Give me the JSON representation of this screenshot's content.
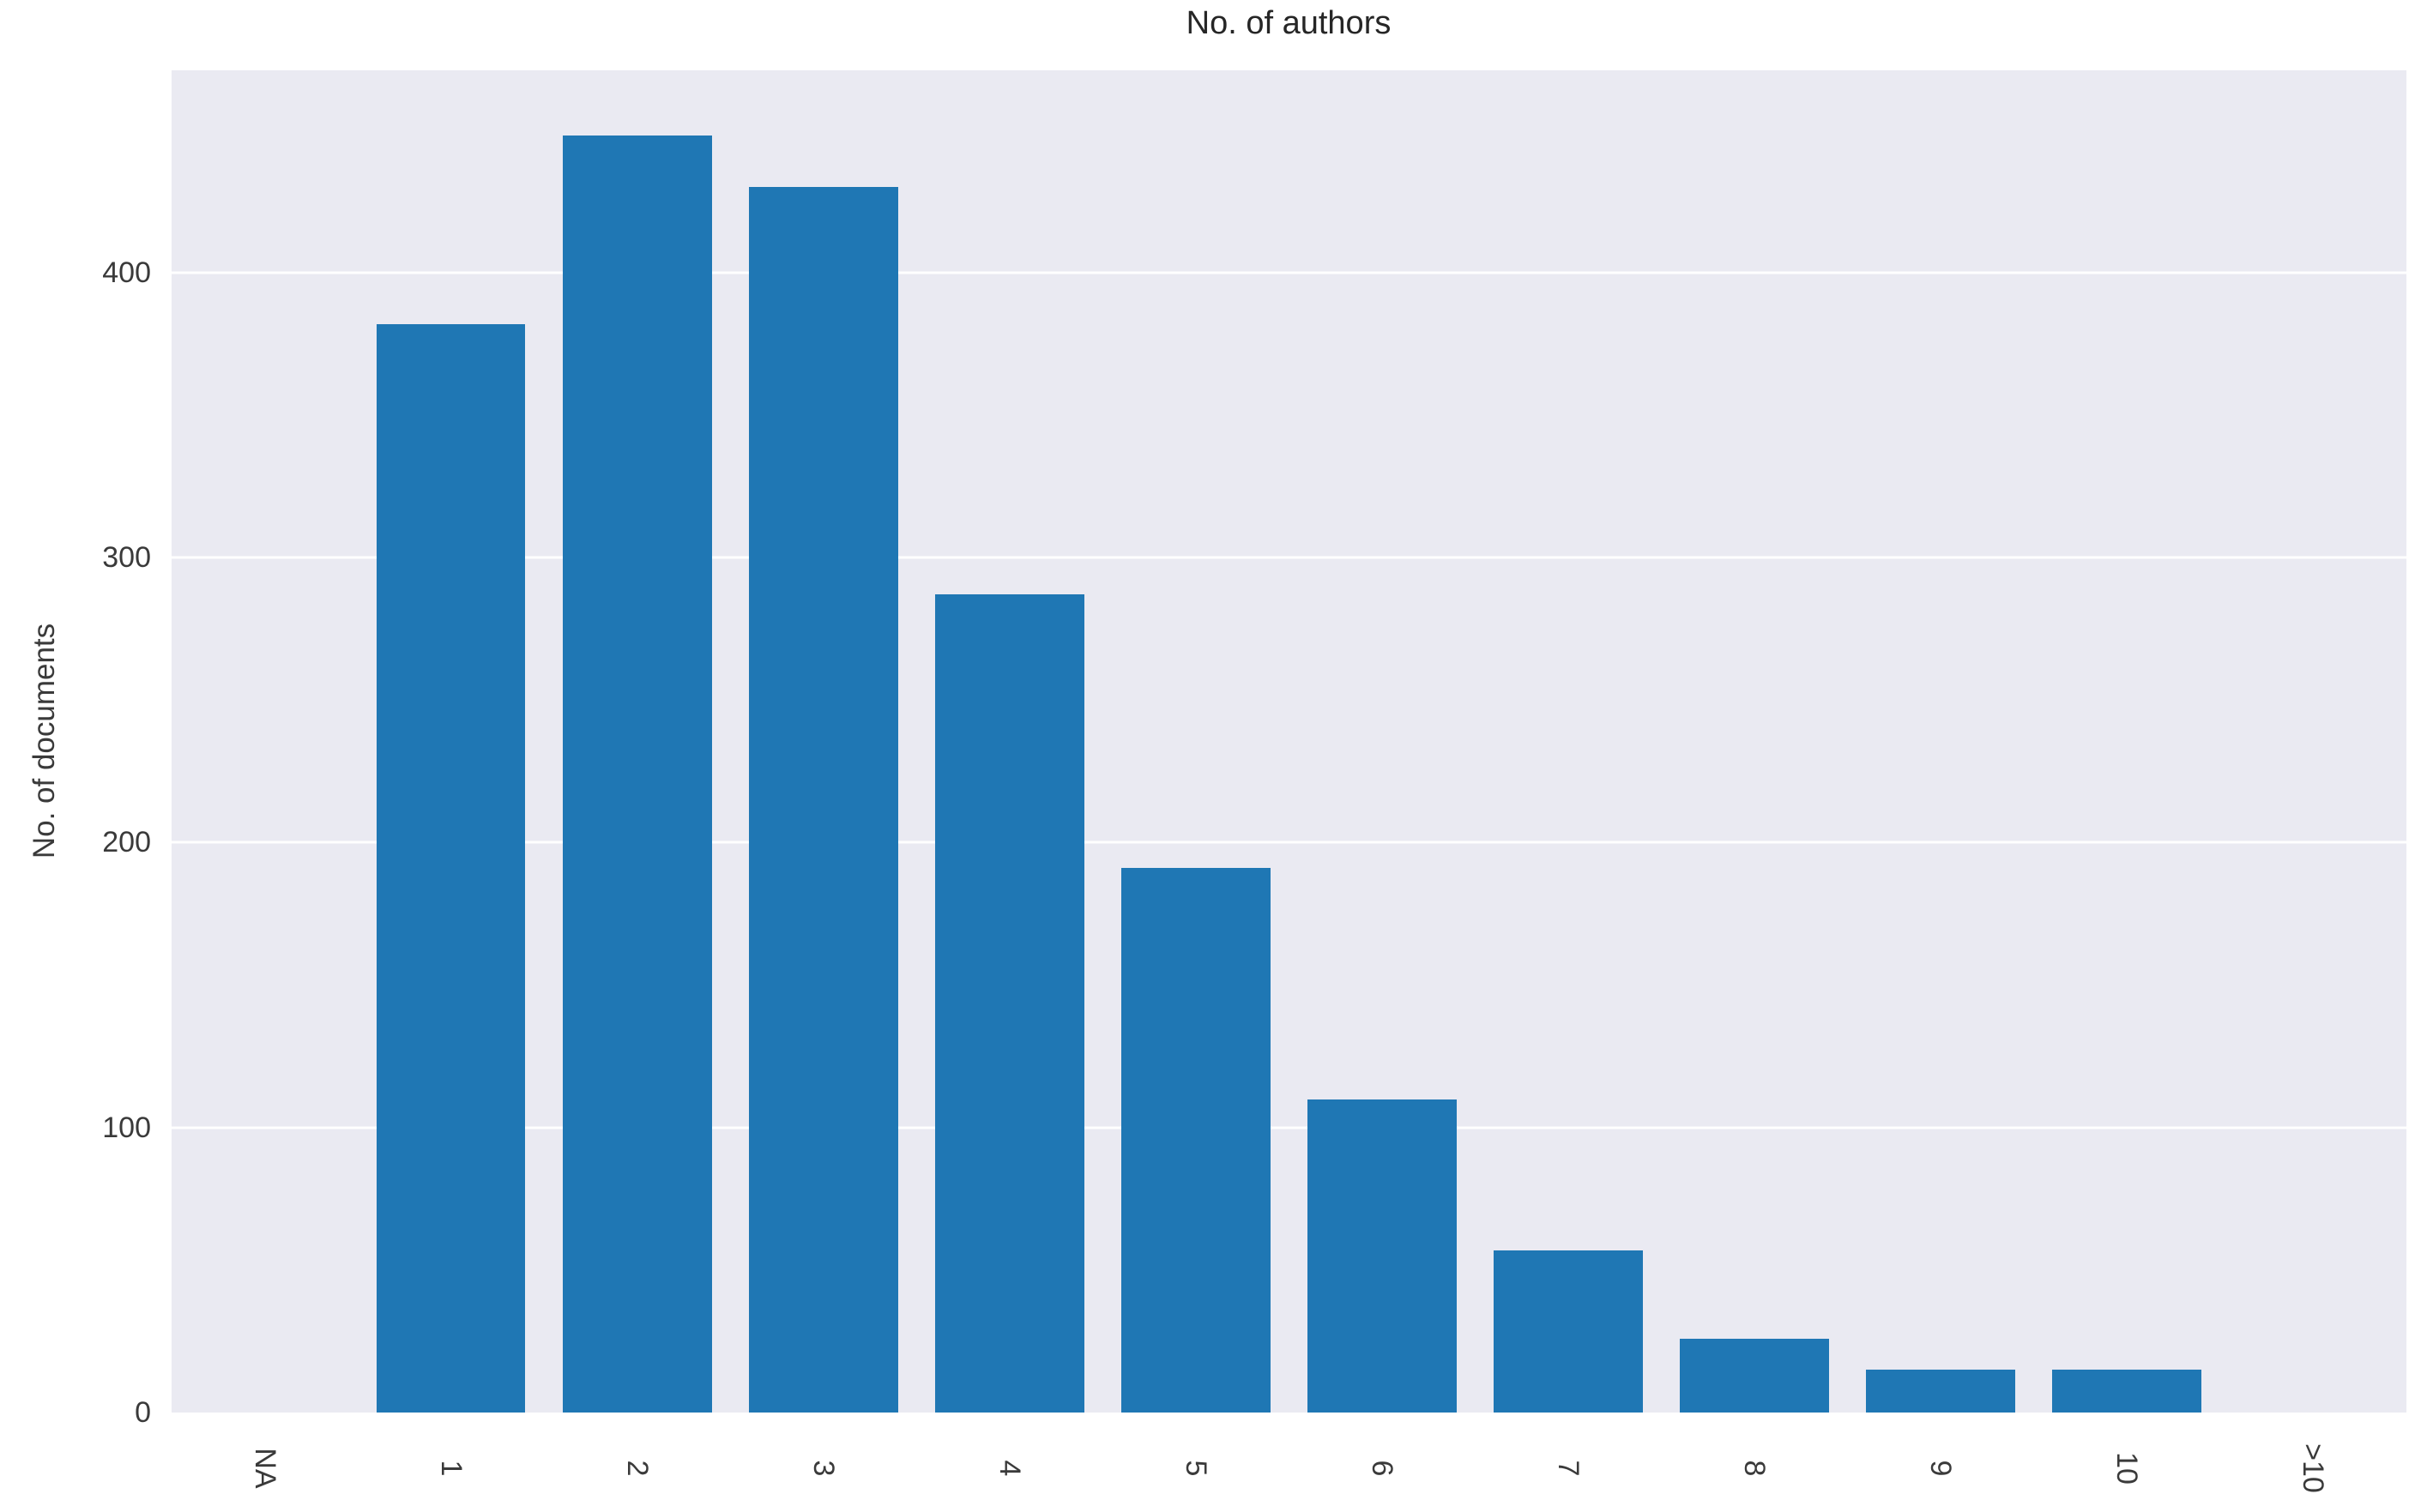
{
  "chart_data": {
    "type": "bar",
    "title": "No. of authors",
    "xlabel": "",
    "ylabel": "No. of documents",
    "categories": [
      "NA",
      "1",
      "2",
      "3",
      "4",
      "5",
      "6",
      "7",
      "8",
      "9",
      "10",
      ">10"
    ],
    "values": [
      0,
      382,
      448,
      430,
      287,
      191,
      110,
      57,
      26,
      15,
      15,
      0
    ],
    "yticks": [
      0,
      100,
      200,
      300,
      400
    ],
    "ylim": [
      0,
      471
    ],
    "grid": "horizontal",
    "legend": "none",
    "colors": {
      "bar": "#1f77b4",
      "plot_background": "#eaeaf2",
      "figure_background": "#ffffff",
      "gridline": "#ffffff",
      "text": "#3a3a3a"
    }
  }
}
